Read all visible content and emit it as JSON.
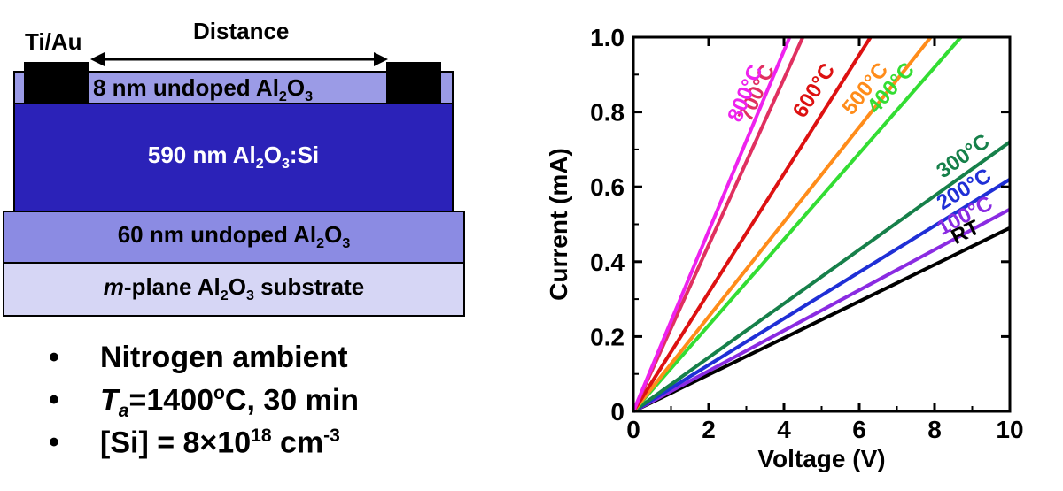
{
  "diagram": {
    "contact_label": "Ti/Au",
    "distance_label": "Distance",
    "layers": {
      "top_oxide": [
        "8 nm undoped Al",
        "2",
        "O",
        "3"
      ],
      "doped": [
        "590 nm Al",
        "2",
        "O",
        "3",
        ":Si"
      ],
      "buffer": [
        "60 nm undoped Al",
        "2",
        "O",
        "3"
      ],
      "substrate": [
        "m",
        "-plane Al",
        "2",
        "O",
        "3",
        " substrate"
      ]
    },
    "colors": {
      "top_oxide": "#9b9be6",
      "doped": "#2b22b8",
      "buffer": "#8b8be3",
      "substrate": "#d6d6f5"
    }
  },
  "conditions": {
    "bullet": "•",
    "ambient": "Nitrogen ambient",
    "anneal": [
      "T",
      "a",
      "=1400",
      "o",
      "C, 30 min"
    ],
    "doping": [
      "[Si] = 8×10",
      "18",
      " cm",
      "-3"
    ]
  },
  "chart_data": {
    "type": "line",
    "xlabel": "Voltage (V)",
    "ylabel": "Current (mA)",
    "xlim": [
      0,
      10
    ],
    "ylim": [
      0,
      1.0
    ],
    "xticks": [
      0,
      2,
      4,
      6,
      8,
      10
    ],
    "yticks": [
      0,
      0.2,
      0.4,
      0.6,
      0.8,
      1.0
    ],
    "ytick_labels": [
      "0",
      "0.2",
      "0.4",
      "0.6",
      "0.8",
      "1.0"
    ],
    "series": [
      {
        "name": "RT",
        "color": "#000000",
        "x": [
          0,
          10
        ],
        "y": [
          0,
          0.49
        ]
      },
      {
        "name": "100°C",
        "color": "#8a2be2",
        "x": [
          0,
          10
        ],
        "y": [
          0,
          0.54
        ]
      },
      {
        "name": "200°C",
        "color": "#1f2fd6",
        "x": [
          0,
          10
        ],
        "y": [
          0,
          0.62
        ]
      },
      {
        "name": "300°C",
        "color": "#16804a",
        "x": [
          0,
          10
        ],
        "y": [
          0,
          0.72
        ]
      },
      {
        "name": "400°C",
        "color": "#33dd33",
        "x": [
          0,
          8.7
        ],
        "y": [
          0,
          1.0
        ]
      },
      {
        "name": "500°C",
        "color": "#ff8c1a",
        "x": [
          0,
          7.9
        ],
        "y": [
          0,
          1.0
        ]
      },
      {
        "name": "600°C",
        "color": "#dd1111",
        "x": [
          0,
          6.3
        ],
        "y": [
          0,
          1.0
        ]
      },
      {
        "name": "700°C",
        "color": "#e03060",
        "x": [
          0,
          4.5
        ],
        "y": [
          0,
          1.0
        ]
      },
      {
        "name": "800°C",
        "color": "#ee22ee",
        "x": [
          0,
          4.15
        ],
        "y": [
          0,
          1.0
        ]
      }
    ]
  }
}
